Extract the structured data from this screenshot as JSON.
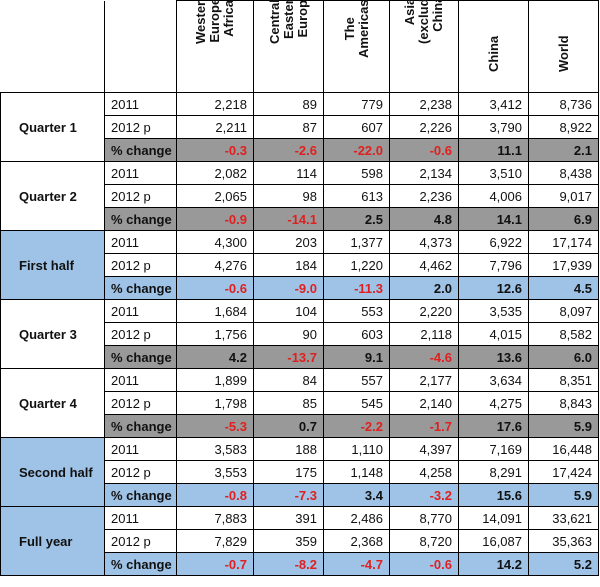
{
  "headers": [
    "Western\nEurope/\nAfrica",
    "Central &\nEastern\nEurope",
    "The\nAmericas",
    "Asia\n(excluding\nChina)",
    "China",
    "World"
  ],
  "groups": [
    {
      "name": "Quarter 1",
      "style": "grey",
      "rows": [
        {
          "label": "2011",
          "values": [
            "2,218",
            "89",
            "779",
            "2,238",
            "3,412",
            "8,736"
          ]
        },
        {
          "label": "2012 p",
          "values": [
            "2,211",
            "87",
            "607",
            "2,226",
            "3,790",
            "8,922"
          ]
        },
        {
          "label": "% change",
          "values": [
            "-0.3",
            "-2.6",
            "-22.0",
            "-0.6",
            "11.1",
            "2.1"
          ]
        }
      ]
    },
    {
      "name": "Quarter 2",
      "style": "grey",
      "rows": [
        {
          "label": "2011",
          "values": [
            "2,082",
            "114",
            "598",
            "2,134",
            "3,510",
            "8,438"
          ]
        },
        {
          "label": "2012 p",
          "values": [
            "2,065",
            "98",
            "613",
            "2,236",
            "4,006",
            "9,017"
          ]
        },
        {
          "label": "% change",
          "values": [
            "-0.9",
            "-14.1",
            "2.5",
            "4.8",
            "14.1",
            "6.9"
          ]
        }
      ]
    },
    {
      "name": "First half",
      "style": "blue",
      "rows": [
        {
          "label": "2011",
          "values": [
            "4,300",
            "203",
            "1,377",
            "4,373",
            "6,922",
            "17,174"
          ]
        },
        {
          "label": "2012 p",
          "values": [
            "4,276",
            "184",
            "1,220",
            "4,462",
            "7,796",
            "17,939"
          ]
        },
        {
          "label": "% change",
          "values": [
            "-0.6",
            "-9.0",
            "-11.3",
            "2.0",
            "12.6",
            "4.5"
          ]
        }
      ]
    },
    {
      "name": "Quarter 3",
      "style": "grey",
      "rows": [
        {
          "label": "2011",
          "values": [
            "1,684",
            "104",
            "553",
            "2,220",
            "3,535",
            "8,097"
          ]
        },
        {
          "label": "2012 p",
          "values": [
            "1,756",
            "90",
            "603",
            "2,118",
            "4,015",
            "8,582"
          ]
        },
        {
          "label": "% change",
          "values": [
            "4.2",
            "-13.7",
            "9.1",
            "-4.6",
            "13.6",
            "6.0"
          ]
        }
      ]
    },
    {
      "name": "Quarter 4",
      "style": "grey",
      "rows": [
        {
          "label": "2011",
          "values": [
            "1,899",
            "84",
            "557",
            "2,177",
            "3,634",
            "8,351"
          ]
        },
        {
          "label": "2012 p",
          "values": [
            "1,798",
            "85",
            "545",
            "2,140",
            "4,275",
            "8,843"
          ]
        },
        {
          "label": "% change",
          "values": [
            "-5.3",
            "0.7",
            "-2.2",
            "-1.7",
            "17.6",
            "5.9"
          ]
        }
      ]
    },
    {
      "name": "Second half",
      "style": "blue",
      "rows": [
        {
          "label": "2011",
          "values": [
            "3,583",
            "188",
            "1,110",
            "4,397",
            "7,169",
            "16,448"
          ]
        },
        {
          "label": "2012 p",
          "values": [
            "3,553",
            "175",
            "1,148",
            "4,258",
            "8,291",
            "17,424"
          ]
        },
        {
          "label": "% change",
          "values": [
            "-0.8",
            "-7.3",
            "3.4",
            "-3.2",
            "15.6",
            "5.9"
          ]
        }
      ]
    },
    {
      "name": "Full year",
      "style": "blue",
      "rows": [
        {
          "label": "2011",
          "values": [
            "7,883",
            "391",
            "2,486",
            "8,770",
            "14,091",
            "33,621"
          ]
        },
        {
          "label": "2012 p",
          "values": [
            "7,829",
            "359",
            "2,368",
            "8,720",
            "16,087",
            "35,363"
          ]
        },
        {
          "label": "% change",
          "values": [
            "-0.7",
            "-8.2",
            "-4.7",
            "-0.6",
            "14.2",
            "5.2"
          ]
        }
      ]
    }
  ]
}
